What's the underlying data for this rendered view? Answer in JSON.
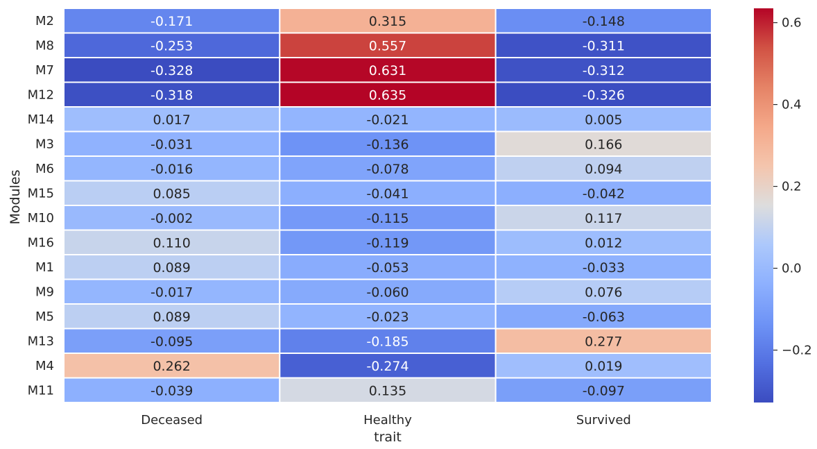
{
  "chart_data": {
    "type": "heatmap",
    "title": "",
    "xlabel": "trait",
    "ylabel": "Modules",
    "x_categories": [
      "Deceased",
      "Healthy",
      "Survived"
    ],
    "y_categories": [
      "M2",
      "M8",
      "M7",
      "M12",
      "M14",
      "M3",
      "M6",
      "M15",
      "M10",
      "M16",
      "M1",
      "M9",
      "M5",
      "M13",
      "M4",
      "M11"
    ],
    "values": [
      [
        -0.171,
        0.315,
        -0.148
      ],
      [
        -0.253,
        0.557,
        -0.311
      ],
      [
        -0.328,
        0.631,
        -0.312
      ],
      [
        -0.318,
        0.635,
        -0.326
      ],
      [
        0.017,
        -0.021,
        0.005
      ],
      [
        -0.031,
        -0.136,
        0.166
      ],
      [
        -0.016,
        -0.078,
        0.094
      ],
      [
        0.085,
        -0.041,
        -0.042
      ],
      [
        -0.002,
        -0.115,
        0.117
      ],
      [
        0.11,
        -0.119,
        0.012
      ],
      [
        0.089,
        -0.053,
        -0.033
      ],
      [
        -0.017,
        -0.06,
        0.076
      ],
      [
        0.089,
        -0.023,
        -0.063
      ],
      [
        -0.095,
        -0.185,
        0.277
      ],
      [
        0.262,
        -0.274,
        0.019
      ],
      [
        -0.039,
        0.135,
        -0.097
      ]
    ],
    "value_labels": [
      [
        "-0.171",
        "0.315",
        "-0.148"
      ],
      [
        "-0.253",
        "0.557",
        "-0.311"
      ],
      [
        "-0.328",
        "0.631",
        "-0.312"
      ],
      [
        "-0.318",
        "0.635",
        "-0.326"
      ],
      [
        "0.017",
        "-0.021",
        "0.005"
      ],
      [
        "-0.031",
        "-0.136",
        "0.166"
      ],
      [
        "-0.016",
        "-0.078",
        "0.094"
      ],
      [
        "0.085",
        "-0.041",
        "-0.042"
      ],
      [
        "-0.002",
        "-0.115",
        "0.117"
      ],
      [
        "0.110",
        "-0.119",
        "0.012"
      ],
      [
        "0.089",
        "-0.053",
        "-0.033"
      ],
      [
        "-0.017",
        "-0.060",
        "0.076"
      ],
      [
        "0.089",
        "-0.023",
        "-0.063"
      ],
      [
        "-0.095",
        "-0.185",
        "0.277"
      ],
      [
        "0.262",
        "-0.274",
        "0.019"
      ],
      [
        "-0.039",
        "0.135",
        "-0.097"
      ]
    ],
    "colormap": "coolwarm",
    "vmin": -0.328,
    "vmax": 0.635,
    "colorbar": {
      "ticks": [
        -0.2,
        0.0,
        0.2,
        0.4,
        0.6
      ],
      "tick_labels": [
        "−0.2",
        "0.0",
        "0.2",
        "0.4",
        "0.6"
      ],
      "placement": "right"
    },
    "cell_borders_color": "#ffffff",
    "grid": false
  }
}
